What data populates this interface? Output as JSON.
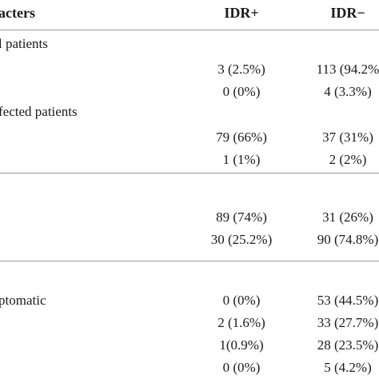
{
  "header": {
    "col0": "acters",
    "col1": "IDR+",
    "col2": "IDR−"
  },
  "sections": [
    {
      "label": "l patients",
      "rows": [
        {
          "idr_pos": "3 (2.5%)",
          "idr_neg": "113 (94.2%"
        },
        {
          "idr_pos": "0 (0%)",
          "idr_neg": "4 (3.3%)"
        }
      ]
    },
    {
      "label": "fected patients",
      "rows": [
        {
          "idr_pos": "79 (66%)",
          "idr_neg": "37 (31%)"
        },
        {
          "idr_pos": "1 (1%)",
          "idr_neg": "2 (2%)"
        }
      ]
    },
    {
      "label": "",
      "rows": [
        {
          "idr_pos": "89 (74%)",
          "idr_neg": "31 (26%)"
        },
        {
          "idr_pos": "30 (25.2%)",
          "idr_neg": "90 (74.8%)"
        }
      ]
    },
    {
      "label": "ptomatic",
      "rows": [
        {
          "idr_pos": "0 (0%)",
          "idr_neg": "53 (44.5%)"
        },
        {
          "idr_pos": "2 (1.6%)",
          "idr_neg": "33 (27.7%)"
        },
        {
          "idr_pos": "1(0.9%)",
          "idr_neg": "28 (23.5%)"
        },
        {
          "idr_pos": "0 (0%)",
          "idr_neg": "5 (4.2%)"
        }
      ]
    }
  ]
}
